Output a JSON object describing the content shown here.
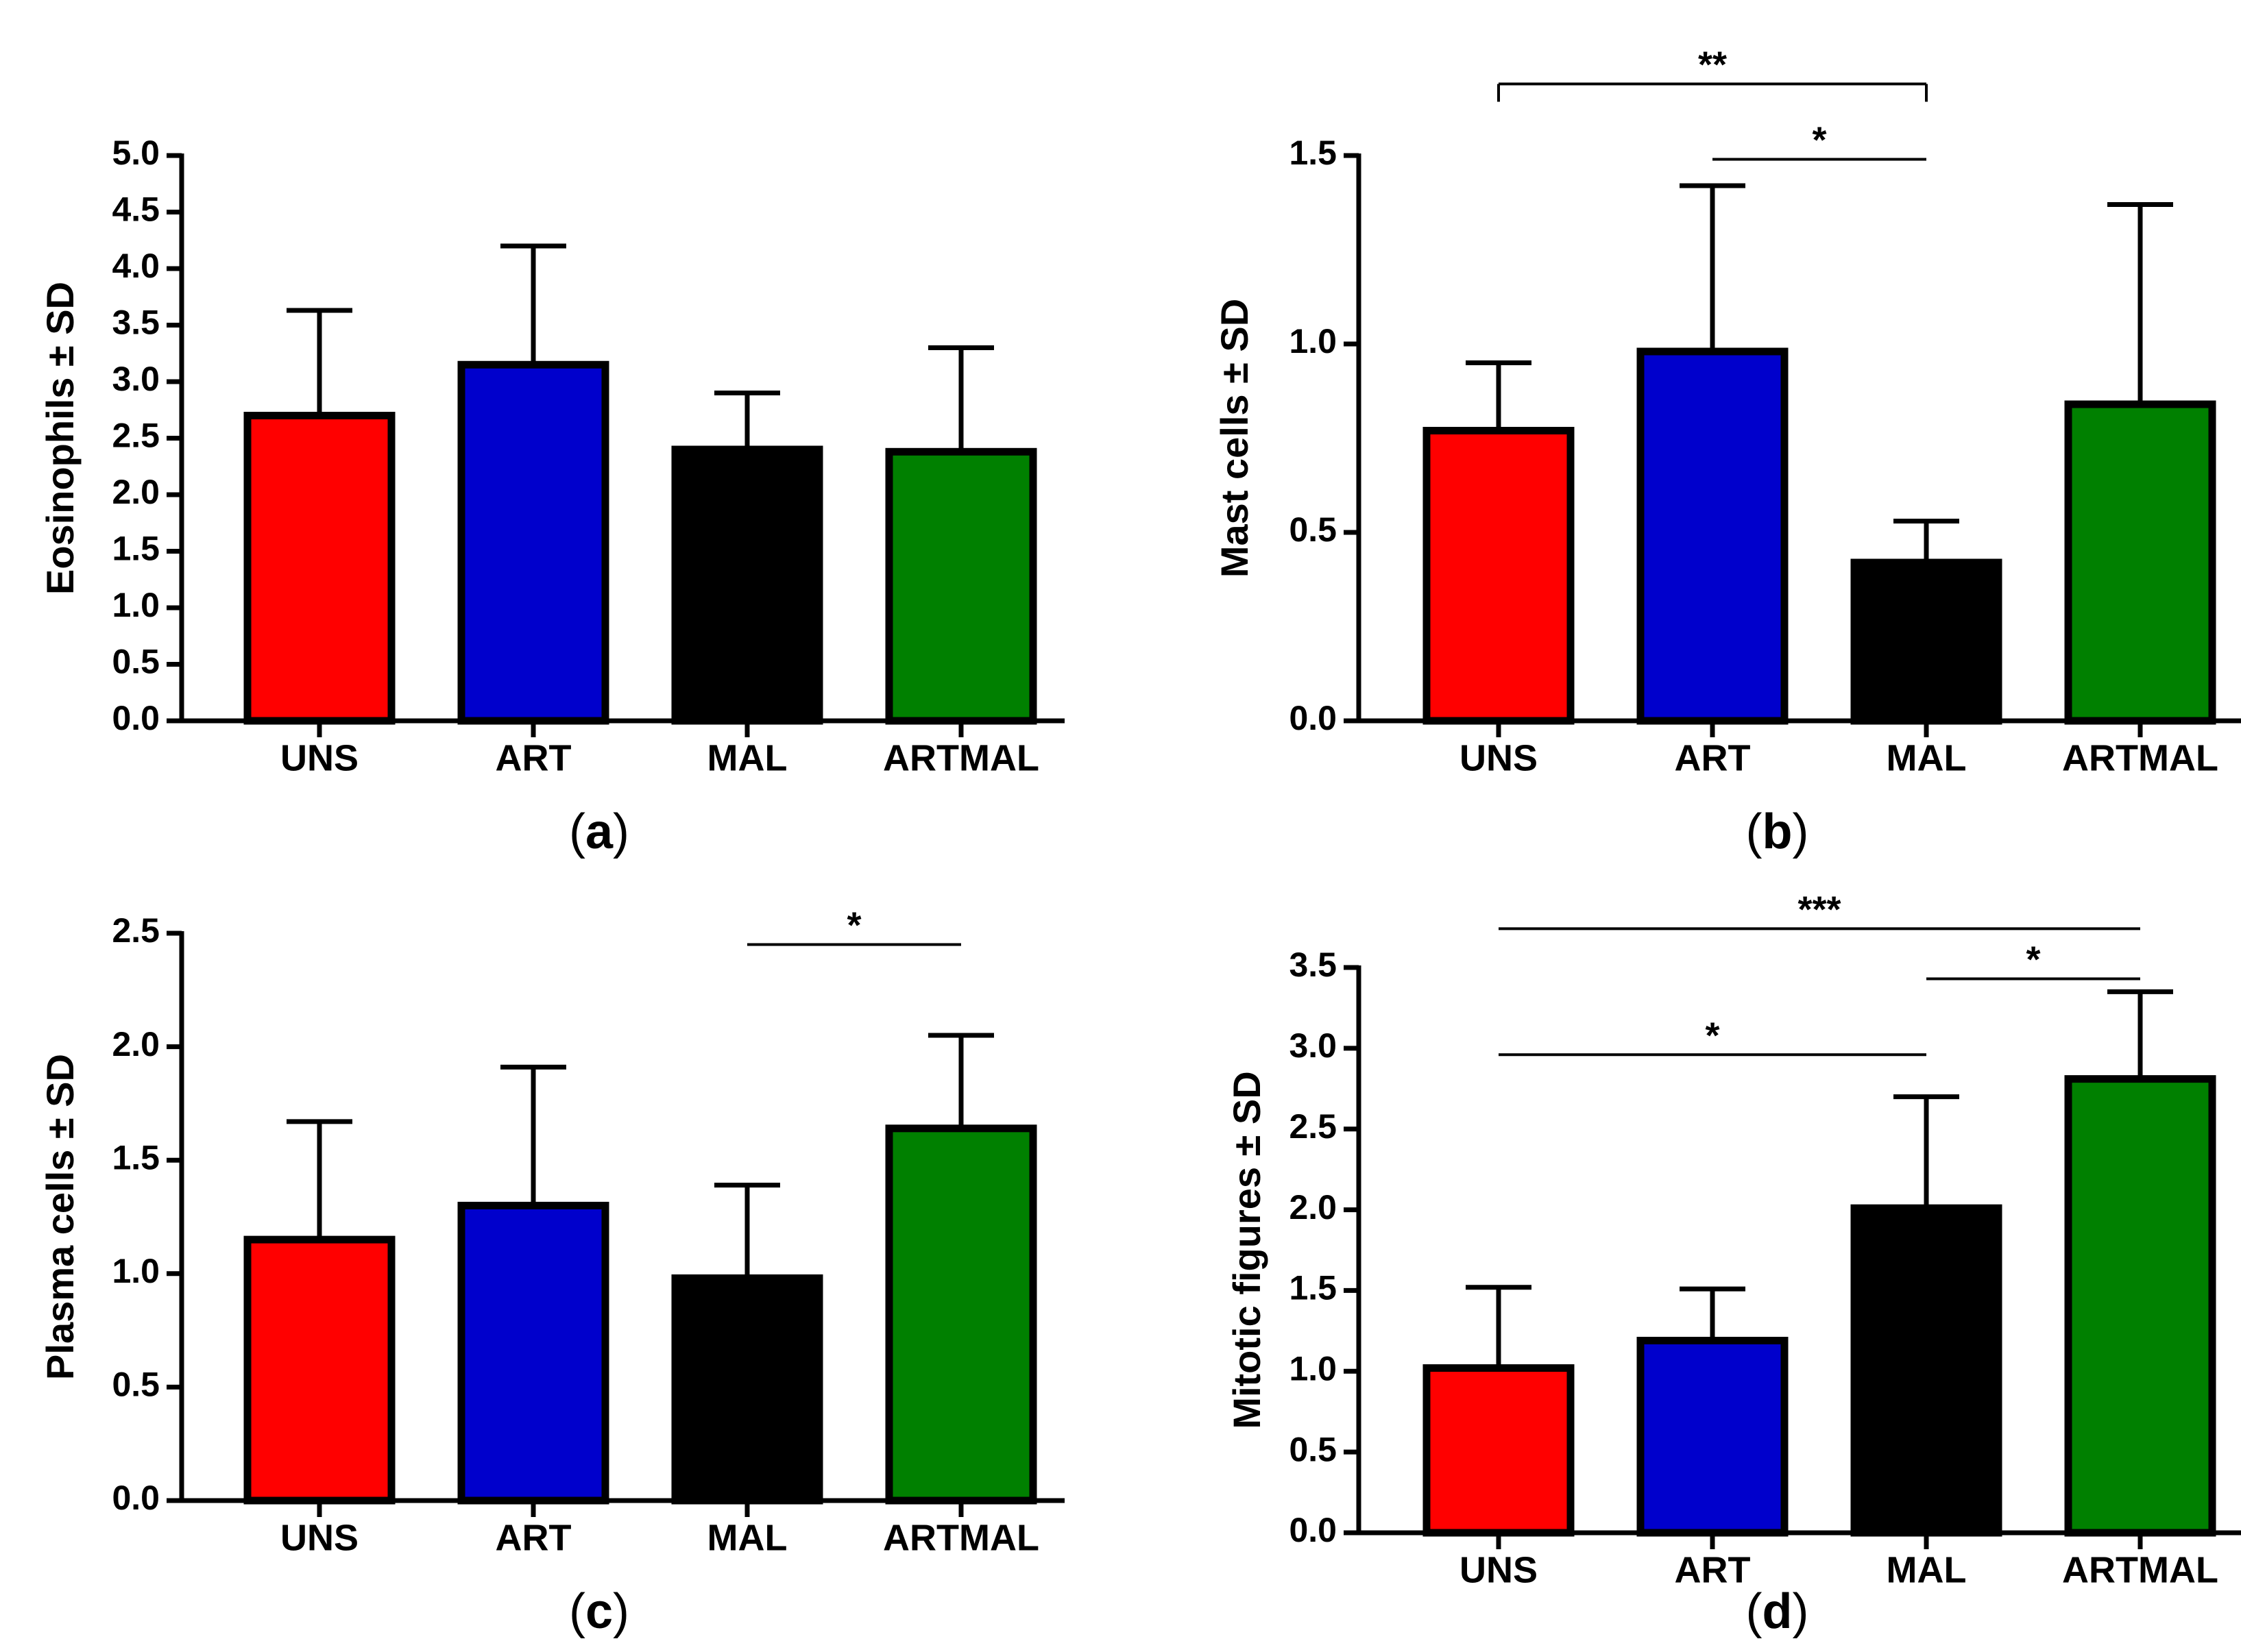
{
  "chart_data": [
    {
      "type": "bar",
      "panel": "a",
      "panel_label": {
        "open": "(",
        "letter": "a",
        "close": ")"
      },
      "ylabel": "Eosinophils ± SD",
      "ylim": [
        0,
        5
      ],
      "ticks": [
        0,
        0.5,
        1,
        1.5,
        2,
        2.5,
        3,
        3.5,
        4,
        4.5,
        5
      ],
      "tick_labels": [
        "0.0",
        "0.5",
        "1.0",
        "1.5",
        "2.0",
        "2.5",
        "3.0",
        "3.5",
        "4.0",
        "4.5",
        "5.0"
      ],
      "categories": [
        "UNS",
        "ART",
        "MAL",
        "ARTMAL"
      ],
      "values": [
        2.7,
        3.15,
        2.4,
        2.38
      ],
      "errors": [
        0.93,
        1.05,
        0.5,
        0.92
      ],
      "significance": []
    },
    {
      "type": "bar",
      "panel": "b",
      "panel_label": {
        "open": "(",
        "letter": "b",
        "close": ")"
      },
      "ylabel": "Mast cells ± SD",
      "ylim": [
        0,
        1.5
      ],
      "ticks": [
        0,
        0.5,
        1,
        1.5
      ],
      "tick_labels": [
        "0.0",
        "0.5",
        "1.0",
        "1.5"
      ],
      "categories": [
        "UNS",
        "ART",
        "MAL",
        "ARTMAL"
      ],
      "values": [
        0.77,
        0.98,
        0.42,
        0.84
      ],
      "errors": [
        0.18,
        0.44,
        0.11,
        0.53
      ],
      "significance": [
        {
          "from": 0,
          "to": 2,
          "label": "**",
          "y": 1.69,
          "ticks": true
        },
        {
          "from": 1,
          "to": 2,
          "label": "*",
          "y": 1.49,
          "ticks": false
        }
      ]
    },
    {
      "type": "bar",
      "panel": "c",
      "panel_label": {
        "open": "(",
        "letter": "c",
        "close": ")"
      },
      "ylabel": "Plasma cells ± SD",
      "ylim": [
        0,
        2.5
      ],
      "ticks": [
        0,
        0.5,
        1,
        1.5,
        2,
        2.5
      ],
      "tick_labels": [
        "0.0",
        "0.5",
        "1.0",
        "1.5",
        "2.0",
        "2.5"
      ],
      "categories": [
        "UNS",
        "ART",
        "MAL",
        "ARTMAL"
      ],
      "values": [
        1.15,
        1.3,
        0.98,
        1.64
      ],
      "errors": [
        0.52,
        0.61,
        0.41,
        0.41
      ],
      "significance": [
        {
          "from": 2,
          "to": 3,
          "label": "*",
          "y": 2.45,
          "ticks": false
        }
      ]
    },
    {
      "type": "bar",
      "panel": "d",
      "panel_label": {
        "open": "(",
        "letter": "d",
        "close": ")"
      },
      "ylabel": "Mitotic figures ± SD",
      "ylim": [
        0,
        3.5
      ],
      "ticks": [
        0,
        0.5,
        1,
        1.5,
        2,
        2.5,
        3,
        3.5
      ],
      "tick_labels": [
        "0.0",
        "0.5",
        "1.0",
        "1.5",
        "2.0",
        "2.5",
        "3.0",
        "3.5"
      ],
      "categories": [
        "UNS",
        "ART",
        "MAL",
        "ARTMAL"
      ],
      "values": [
        1.02,
        1.19,
        2.01,
        2.81
      ],
      "errors": [
        0.5,
        0.32,
        0.69,
        0.54
      ],
      "significance": [
        {
          "from": 0,
          "to": 3,
          "label": "***",
          "y": 3.74,
          "ticks": false
        },
        {
          "from": 2,
          "to": 3,
          "label": "*",
          "y": 3.43,
          "ticks": false
        },
        {
          "from": 0,
          "to": 2,
          "label": "*",
          "y": 2.96,
          "ticks": false
        }
      ]
    }
  ],
  "colors": {
    "UNS": "#ff0000",
    "ART": "#0000cc",
    "MAL": "#000000",
    "ARTMAL": "#008000",
    "axis": "#000000"
  }
}
